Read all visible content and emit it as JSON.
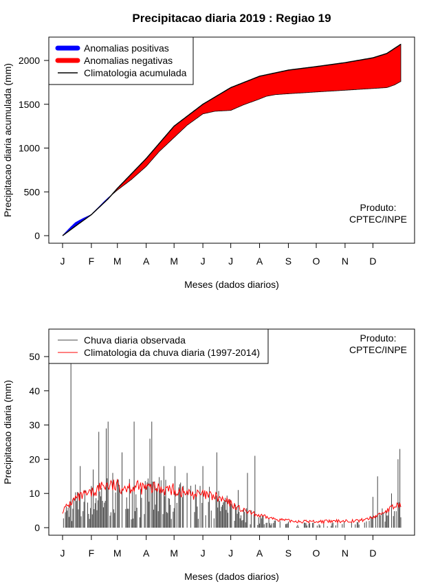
{
  "chart_data": [
    {
      "type": "area",
      "title": "Precipitacao diaria 2019 : Regiao 19",
      "xlabel": "Meses (dados diarios)",
      "ylabel": "Precipitacao diaria acumulada (mm)",
      "xlim": [
        1,
        365
      ],
      "ylim": [
        0,
        2200
      ],
      "yticks": [
        0,
        500,
        1000,
        1500,
        2000
      ],
      "months": [
        "J",
        "F",
        "M",
        "A",
        "M",
        "J",
        "J",
        "A",
        "S",
        "O",
        "N",
        "D"
      ],
      "month_start_days": [
        1,
        32,
        60,
        91,
        121,
        152,
        182,
        213,
        244,
        274,
        305,
        335
      ],
      "legend": [
        "Anomalias positivas",
        "Anomalias negativas",
        "Climatologia acumulada"
      ],
      "colors": {
        "positive": "#0000ff",
        "negative": "#ff0000",
        "climatology": "#000000"
      },
      "climatology_cumulative": {
        "x": [
          1,
          15,
          32,
          50,
          60,
          91,
          121,
          152,
          182,
          213,
          244,
          274,
          305,
          335,
          350,
          365
        ],
        "y": [
          0,
          110,
          240,
          420,
          540,
          880,
          1250,
          1500,
          1690,
          1820,
          1890,
          1930,
          1975,
          2030,
          2080,
          2185
        ]
      },
      "observed_cumulative": {
        "x": [
          1,
          10,
          15,
          22,
          32,
          45,
          50,
          60,
          75,
          91,
          105,
          121,
          135,
          152,
          165,
          182,
          195,
          213,
          220,
          230,
          244,
          274,
          305,
          335,
          350,
          358,
          365
        ],
        "y": [
          0,
          100,
          150,
          190,
          240,
          380,
          430,
          520,
          640,
          790,
          960,
          1120,
          1260,
          1390,
          1420,
          1430,
          1490,
          1560,
          1590,
          1610,
          1620,
          1640,
          1660,
          1680,
          1690,
          1720,
          1760
        ]
      },
      "annotation": "Produto:\nCPTEC/INPE"
    },
    {
      "type": "bar",
      "xlabel": "Meses (dados diarios)",
      "ylabel": "Precipitacao diaria (mm)",
      "xlim": [
        1,
        365
      ],
      "ylim": [
        0,
        58
      ],
      "yticks": [
        0,
        10,
        20,
        30,
        40,
        50
      ],
      "months": [
        "J",
        "F",
        "M",
        "A",
        "M",
        "J",
        "J",
        "A",
        "S",
        "O",
        "N",
        "D"
      ],
      "month_start_days": [
        1,
        32,
        60,
        91,
        121,
        152,
        182,
        213,
        244,
        274,
        305,
        335
      ],
      "legend": [
        "Chuva diaria observada",
        "Climatologia da chuva diaria (1997-2014)"
      ],
      "colors": {
        "observed": "#444444",
        "climatology": "#ff0000"
      },
      "observed_peaks": [
        {
          "day": 10,
          "value": 48
        },
        {
          "day": 20,
          "value": 18
        },
        {
          "day": 34,
          "value": 17
        },
        {
          "day": 40,
          "value": 28
        },
        {
          "day": 48,
          "value": 29
        },
        {
          "day": 50,
          "value": 31
        },
        {
          "day": 55,
          "value": 16
        },
        {
          "day": 65,
          "value": 22
        },
        {
          "day": 78,
          "value": 31
        },
        {
          "day": 95,
          "value": 26
        },
        {
          "day": 97,
          "value": 31
        },
        {
          "day": 110,
          "value": 18
        },
        {
          "day": 122,
          "value": 18
        },
        {
          "day": 135,
          "value": 16
        },
        {
          "day": 152,
          "value": 18
        },
        {
          "day": 167,
          "value": 22
        },
        {
          "day": 190,
          "value": 11
        },
        {
          "day": 200,
          "value": 16
        },
        {
          "day": 208,
          "value": 21
        },
        {
          "day": 335,
          "value": 9
        },
        {
          "day": 340,
          "value": 15
        },
        {
          "day": 355,
          "value": 10
        },
        {
          "day": 362,
          "value": 20
        },
        {
          "day": 364,
          "value": 23
        }
      ],
      "climatology_daily": {
        "x": [
          1,
          15,
          32,
          45,
          60,
          75,
          91,
          105,
          121,
          135,
          152,
          165,
          182,
          195,
          213,
          230,
          244,
          260,
          274,
          290,
          305,
          320,
          335,
          350,
          365
        ],
        "y": [
          5,
          8.5,
          10,
          12.5,
          12,
          12,
          11.5,
          11.5,
          11,
          10,
          9.5,
          9,
          7,
          5,
          3.5,
          2.5,
          2,
          1.8,
          1.8,
          1.8,
          2,
          2,
          3,
          5,
          7
        ]
      },
      "annotation": "Produto:\nCPTEC/INPE"
    }
  ]
}
